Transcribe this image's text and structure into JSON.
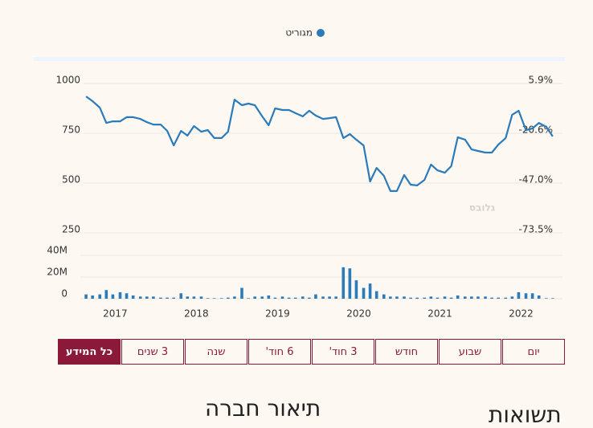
{
  "chart_data": [
    {
      "type": "line",
      "series": [
        {
          "name": "מגוריט",
          "color": "#2b7bba",
          "values": [
            919,
            895,
            863,
            786,
            794,
            794,
            815,
            815,
            806,
            790,
            778,
            778,
            746,
            673,
            746,
            722,
            770,
            742,
            750,
            710,
            710,
            742,
            903,
            875,
            883,
            875,
            819,
            774,
            859,
            851,
            851,
            835,
            819,
            847,
            823,
            806,
            810,
            815,
            710,
            730,
            702,
            673,
            492,
            560,
            520,
            444,
            444,
            524,
            476,
            472,
            500,
            577,
            548,
            536,
            569,
            714,
            702,
            653,
            645,
            637,
            637,
            677,
            710,
            827,
            847,
            750,
            758,
            786,
            766,
            718
          ]
        }
      ],
      "x": [
        2016.64,
        2016.72,
        2016.81,
        2016.89,
        2016.97,
        2017.06,
        2017.14,
        2017.22,
        2017.31,
        2017.39,
        2017.47,
        2017.56,
        2017.64,
        2017.72,
        2017.81,
        2017.89,
        2017.97,
        2018.06,
        2018.14,
        2018.22,
        2018.31,
        2018.39,
        2018.47,
        2018.56,
        2018.64,
        2018.72,
        2018.81,
        2018.89,
        2018.97,
        2019.06,
        2019.14,
        2019.22,
        2019.31,
        2019.39,
        2019.47,
        2019.56,
        2019.64,
        2019.72,
        2019.81,
        2019.89,
        2019.97,
        2020.06,
        2020.14,
        2020.22,
        2020.31,
        2020.39,
        2020.47,
        2020.56,
        2020.64,
        2020.72,
        2020.81,
        2020.89,
        2020.97,
        2021.06,
        2021.14,
        2021.22,
        2021.31,
        2021.39,
        2021.47,
        2021.56,
        2021.64,
        2021.72,
        2021.81,
        2021.89,
        2021.97,
        2022.06,
        2022.14,
        2022.22,
        2022.31,
        2022.39
      ],
      "xlim": [
        2016.57,
        2022.51
      ],
      "xticks": [
        2017,
        2018,
        2019,
        2020,
        2021,
        2022
      ],
      "ylim": [
        250,
        1000
      ],
      "yticks": [
        250,
        500,
        750,
        1000
      ],
      "y2lim": [
        -73.5,
        5.9
      ],
      "y2ticks": [
        {
          "value": -73.5,
          "label": "-73.5%"
        },
        {
          "value": -47.0,
          "label": "-47.0%"
        },
        {
          "value": -20.6,
          "label": "-20.6%"
        },
        {
          "value": 5.9,
          "label": "5.9%"
        }
      ],
      "grid": true,
      "legend": "top",
      "watermark": "גלובס"
    },
    {
      "type": "bar",
      "color": "#2b7bba",
      "x": [
        2016.64,
        2016.72,
        2016.81,
        2016.89,
        2016.97,
        2017.06,
        2017.14,
        2017.22,
        2017.31,
        2017.39,
        2017.47,
        2017.56,
        2017.64,
        2017.72,
        2017.81,
        2017.89,
        2017.97,
        2018.06,
        2018.14,
        2018.22,
        2018.31,
        2018.39,
        2018.47,
        2018.56,
        2018.64,
        2018.72,
        2018.81,
        2018.89,
        2018.97,
        2019.06,
        2019.14,
        2019.22,
        2019.31,
        2019.39,
        2019.47,
        2019.56,
        2019.64,
        2019.72,
        2019.81,
        2019.89,
        2019.97,
        2020.06,
        2020.14,
        2020.22,
        2020.31,
        2020.39,
        2020.47,
        2020.56,
        2020.64,
        2020.72,
        2020.81,
        2020.89,
        2020.97,
        2021.06,
        2021.14,
        2021.22,
        2021.31,
        2021.39,
        2021.47,
        2021.56,
        2021.64,
        2021.72,
        2021.81,
        2021.89,
        2021.97,
        2022.06,
        2022.14,
        2022.22,
        2022.31,
        2022.39
      ],
      "values": [
        4000000,
        3000000,
        4000000,
        8000000,
        4000000,
        6000000,
        5000000,
        3000000,
        2000000,
        2000000,
        2000000,
        1000000,
        1000000,
        1000000,
        5000000,
        2000000,
        2000000,
        2000000,
        500000,
        500000,
        500000,
        1000000,
        2000000,
        10000000,
        500000,
        2000000,
        2000000,
        3000000,
        1000000,
        2000000,
        1000000,
        1000000,
        2000000,
        1000000,
        4000000,
        2000000,
        2000000,
        2000000,
        29000000,
        28000000,
        17000000,
        10000000,
        14000000,
        7000000,
        4000000,
        2000000,
        2000000,
        2000000,
        1000000,
        1000000,
        1000000,
        2000000,
        1000000,
        2000000,
        1000000,
        3000000,
        2000000,
        2000000,
        2000000,
        2000000,
        1000000,
        1000000,
        1000000,
        2000000,
        6000000,
        5000000,
        5000000,
        3000000,
        500000,
        500000
      ],
      "xlim": [
        2016.57,
        2022.51
      ],
      "ylim": [
        0,
        40000000
      ],
      "yticks": [
        0,
        {
          "value": 20000000,
          "label": "20M"
        },
        {
          "value": 40000000,
          "label": "40M"
        }
      ],
      "grid": true
    }
  ],
  "range_buttons": [
    "יום",
    "שבוע",
    "חודש",
    "3 חוד'",
    "6 חוד'",
    "שנה",
    "3 שנים",
    "כל המידע"
  ],
  "selected_index": 7,
  "headings": {
    "company": "תיאור חברה",
    "returns": "תשואות"
  }
}
